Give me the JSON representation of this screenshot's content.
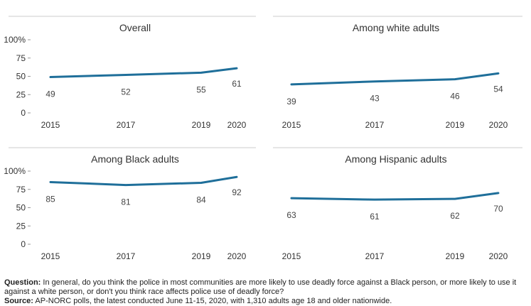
{
  "chart_data": [
    {
      "type": "line",
      "title": "Overall",
      "x": [
        "2015",
        "2017",
        "2019",
        "2020"
      ],
      "values": [
        49,
        52,
        55,
        61
      ],
      "yticks": [
        "100%",
        "75",
        "50",
        "25",
        "0"
      ],
      "ylim": [
        0,
        100
      ],
      "grid": false,
      "color": "#1f6f9a"
    },
    {
      "type": "line",
      "title": "Among white adults",
      "x": [
        "2015",
        "2017",
        "2019",
        "2020"
      ],
      "values": [
        39,
        43,
        46,
        54
      ],
      "ylim": [
        0,
        100
      ],
      "grid": false,
      "color": "#1f6f9a"
    },
    {
      "type": "line",
      "title": "Among Black adults",
      "x": [
        "2015",
        "2017",
        "2019",
        "2020"
      ],
      "values": [
        85,
        81,
        84,
        92
      ],
      "yticks": [
        "100%",
        "75",
        "50",
        "25",
        "0"
      ],
      "ylim": [
        0,
        100
      ],
      "grid": false,
      "color": "#1f6f9a"
    },
    {
      "type": "line",
      "title": "Among Hispanic adults",
      "x": [
        "2015",
        "2017",
        "2019",
        "2020"
      ],
      "values": [
        63,
        61,
        62,
        70
      ],
      "ylim": [
        0,
        100
      ],
      "grid": false,
      "color": "#1f6f9a"
    }
  ],
  "footnote": {
    "question_label": "Question:",
    "question_text": "In general, do you think the police in most communities are more likely to use deadly force against a Black person, or more likely to use it against a white person, or don't you think race affects police use of deadly force?",
    "source_label": "Source:",
    "source_text": "AP-NORC polls, the latest conducted June 11-15, 2020, with 1,310 adults age 18 and older nationwide."
  }
}
